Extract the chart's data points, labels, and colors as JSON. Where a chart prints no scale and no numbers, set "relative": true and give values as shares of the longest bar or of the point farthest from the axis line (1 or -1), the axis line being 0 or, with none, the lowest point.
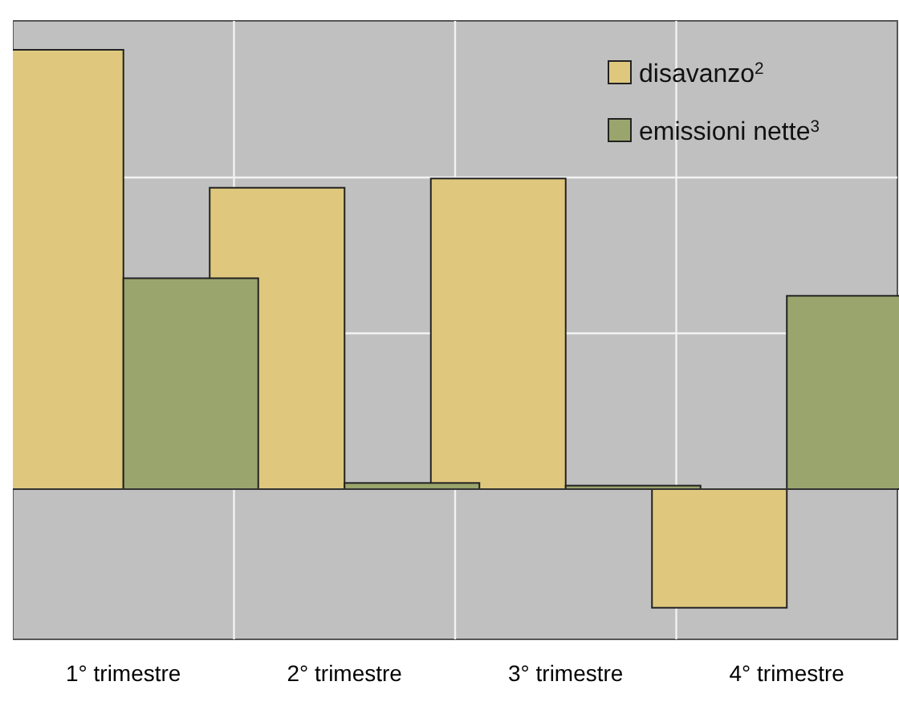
{
  "chart_data": {
    "type": "bar",
    "relative": true,
    "categories": [
      "1° trimestre",
      "2° trimestre",
      "3° trimestre",
      "4° trimestre"
    ],
    "series": [
      {
        "name": "disavanzo$^{2}$",
        "color": "#dfc87e",
        "values": [
          1,
          0.686,
          0.707,
          -0.27
        ]
      },
      {
        "name": "emissioni nette$^{3}$",
        "color": "#9aa56d",
        "values": [
          0.48,
          0.014,
          0.008,
          0.44
        ]
      }
    ],
    "grid": true,
    "legend": "top right"
  }
}
